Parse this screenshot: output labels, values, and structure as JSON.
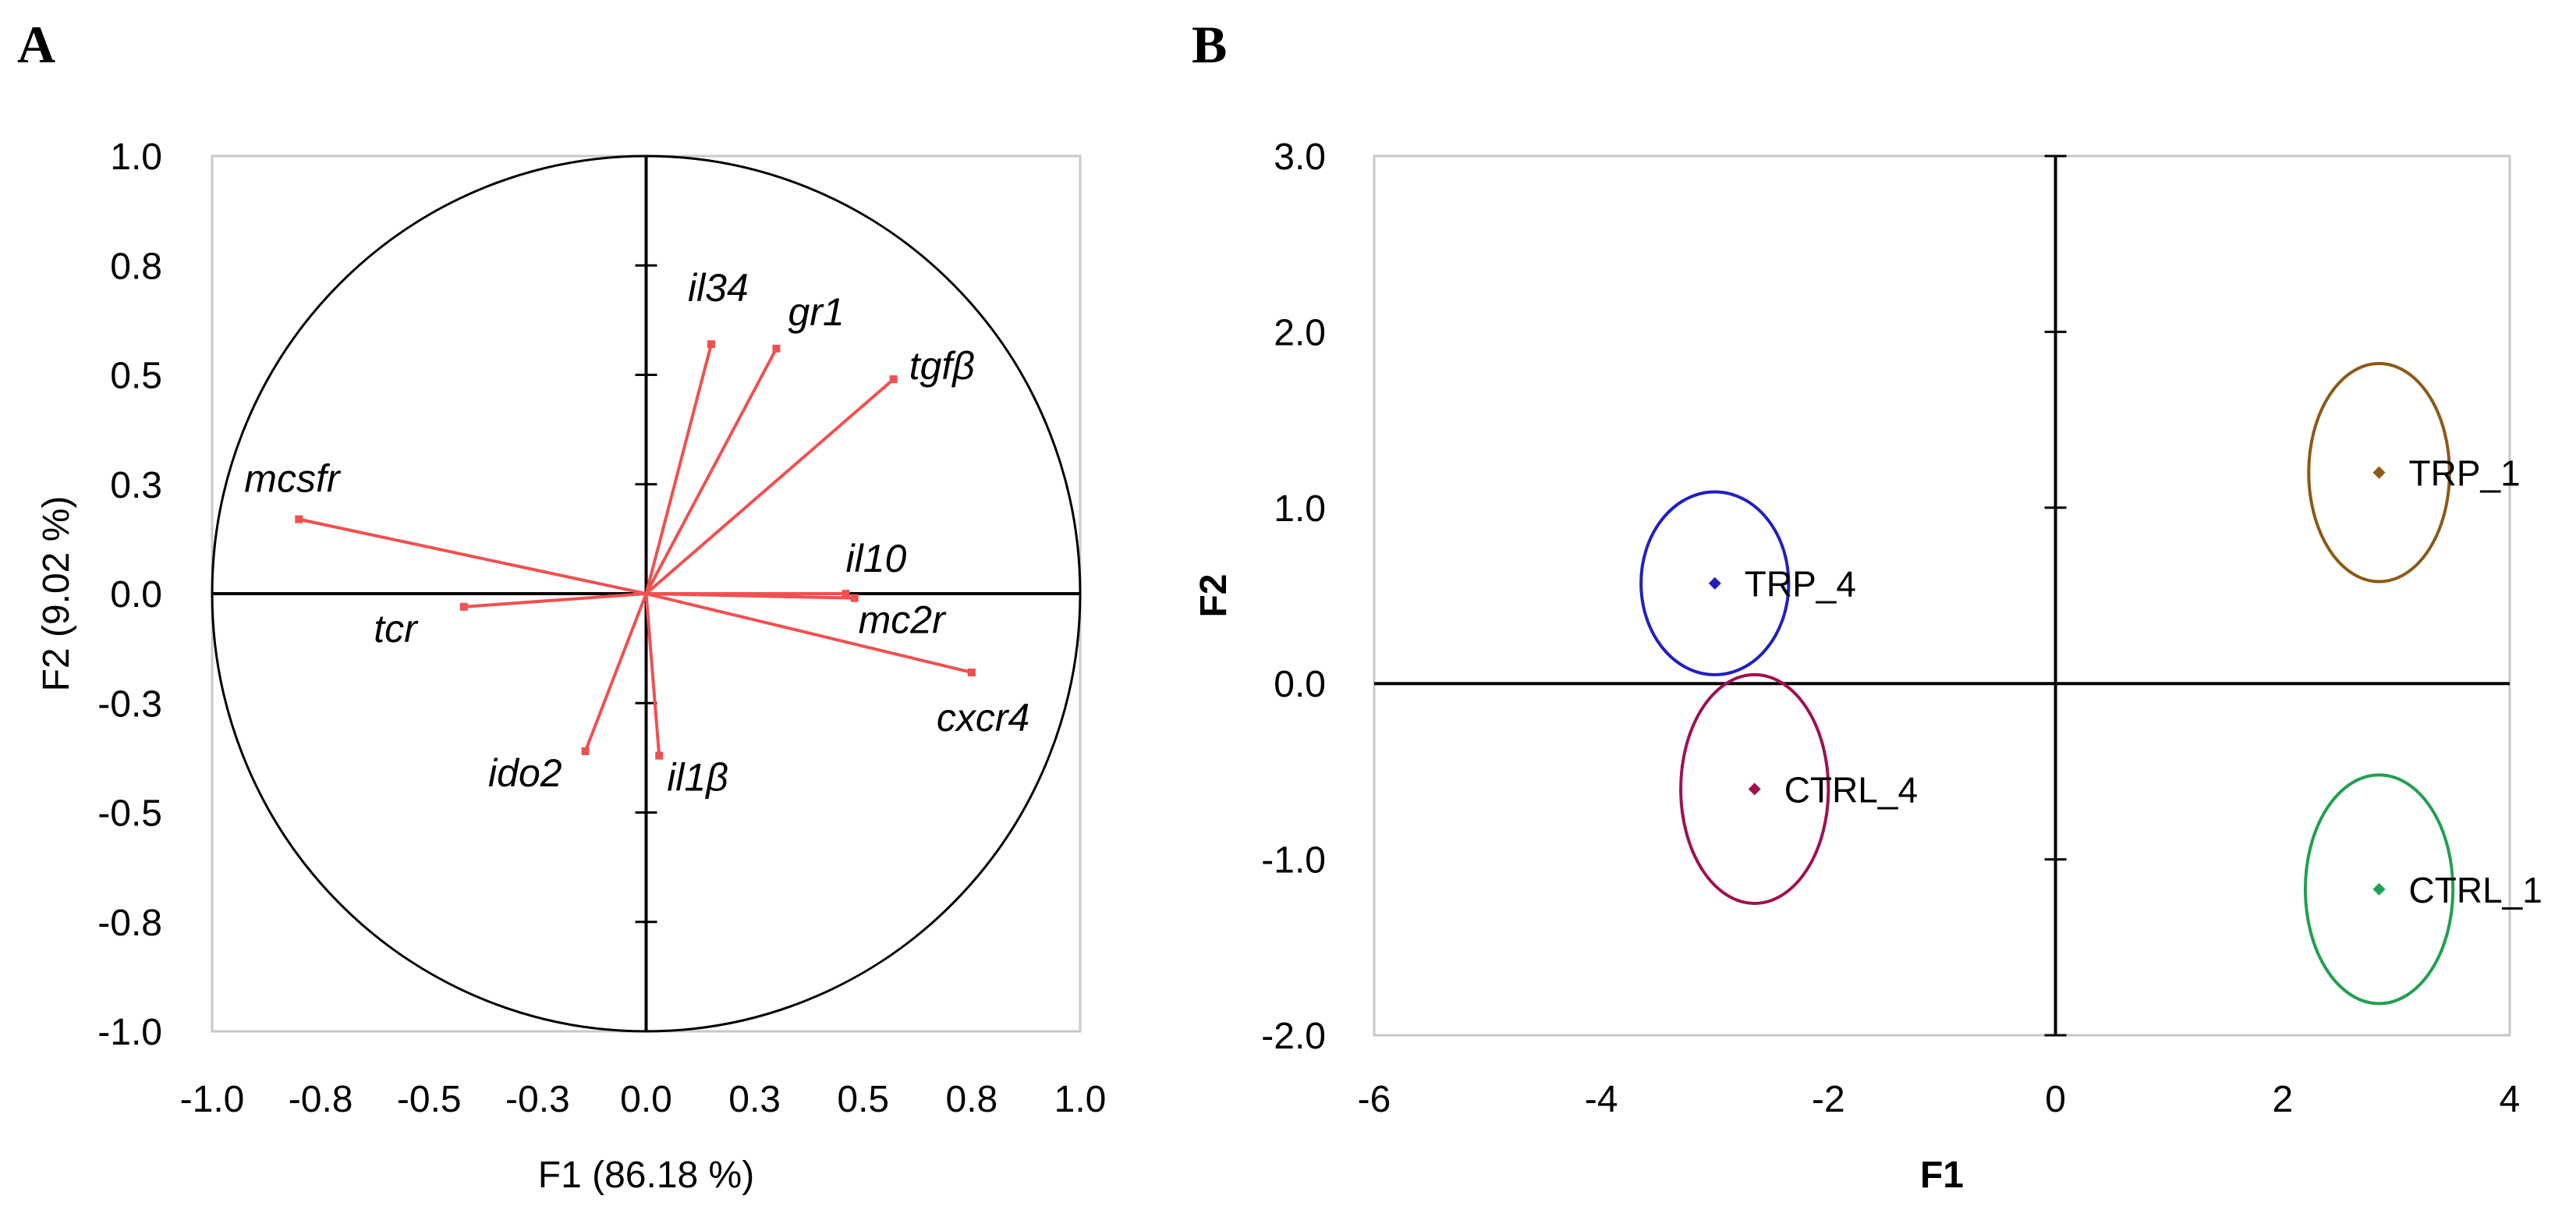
{
  "panels": {
    "a_label": "A",
    "b_label": "B"
  },
  "chart_data": [
    {
      "type": "scatter",
      "subtype": "correlation-circle",
      "panel": "A",
      "xlabel": "F1 (86.18 %)",
      "ylabel": "F2 (9.02 %)",
      "xlim": [
        -1.0,
        1.0
      ],
      "ylim": [
        -1.0,
        1.0
      ],
      "x_ticks": [
        -1.0,
        -0.75,
        -0.5,
        -0.25,
        0.0,
        0.25,
        0.5,
        0.75,
        1.0
      ],
      "x_tick_labels": [
        "-1.0",
        "-0.8",
        "-0.5",
        "-0.3",
        "0.0",
        "0.3",
        "0.5",
        "0.8",
        "1.0"
      ],
      "y_ticks": [
        -1.0,
        -0.75,
        -0.5,
        -0.25,
        0.0,
        0.25,
        0.5,
        0.75,
        1.0
      ],
      "y_tick_labels": [
        "-1.0",
        "-0.8",
        "-0.5",
        "-0.3",
        "0.0",
        "0.3",
        "0.5",
        "0.8",
        "1.0"
      ],
      "circle_radius": 1.0,
      "vector_color": "#f05050",
      "circle_color": "#000000",
      "frame_color": "#c8c8c8",
      "vectors": [
        {
          "name": "il34",
          "x": 0.15,
          "y": 0.57
        },
        {
          "name": "gr1",
          "x": 0.3,
          "y": 0.56
        },
        {
          "name": "tgfβ",
          "x": 0.57,
          "y": 0.49
        },
        {
          "name": "mcsfr",
          "x": -0.8,
          "y": 0.17
        },
        {
          "name": "il10",
          "x": 0.46,
          "y": 0.0
        },
        {
          "name": "tcr",
          "x": -0.42,
          "y": -0.03
        },
        {
          "name": "mc2r",
          "x": 0.48,
          "y": -0.01
        },
        {
          "name": "cxcr4",
          "x": 0.75,
          "y": -0.18
        },
        {
          "name": "ido2",
          "x": -0.14,
          "y": -0.36
        },
        {
          "name": "il1β",
          "x": 0.03,
          "y": -0.37
        }
      ]
    },
    {
      "type": "scatter",
      "subtype": "score-plot-with-confidence-ellipses",
      "panel": "B",
      "xlabel": "F1",
      "ylabel": "F2",
      "xlim": [
        -6,
        4
      ],
      "ylim": [
        -2.0,
        3.0
      ],
      "x_ticks": [
        -6,
        -4,
        -2,
        0,
        2,
        4
      ],
      "x_tick_labels": [
        "-6",
        "-4",
        "-2",
        "0",
        "2",
        "4"
      ],
      "y_ticks": [
        -2.0,
        -1.0,
        0.0,
        1.0,
        2.0,
        3.0
      ],
      "y_tick_labels": [
        "-2.0",
        "-1.0",
        "0.0",
        "1.0",
        "2.0",
        "3.0"
      ],
      "frame_color": "#c8c8c8",
      "groups": [
        {
          "name": "TRP_4",
          "x": -3.0,
          "y": 0.57,
          "rx": 0.65,
          "ry": 0.52,
          "color": "#2020c0"
        },
        {
          "name": "CTRL_4",
          "x": -2.65,
          "y": -0.6,
          "rx": 0.65,
          "ry": 0.65,
          "color": "#a01050"
        },
        {
          "name": "TRP_1",
          "x": 2.85,
          "y": 1.2,
          "rx": 0.62,
          "ry": 0.62,
          "color": "#8b5a16"
        },
        {
          "name": "CTRL_1",
          "x": 2.85,
          "y": -1.17,
          "rx": 0.65,
          "ry": 0.65,
          "color": "#20a050"
        }
      ]
    }
  ]
}
